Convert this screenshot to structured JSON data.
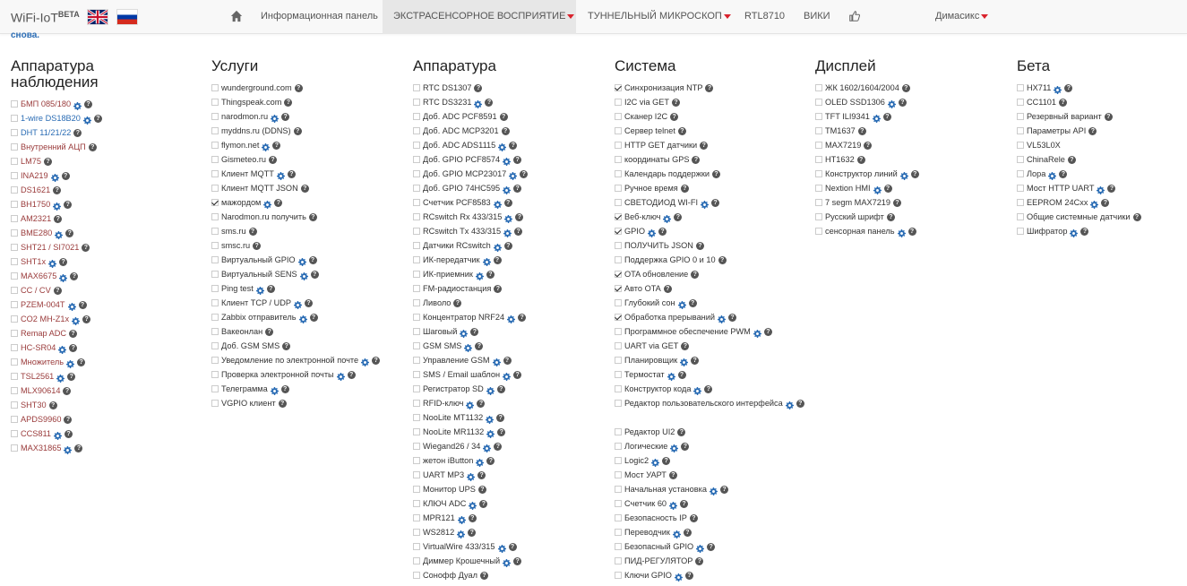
{
  "navbar": {
    "brand": "WiFi-IoT",
    "brand_sup": "BETA",
    "menu": [
      {
        "label": "Информационная панель",
        "dropdown": false
      },
      {
        "label": "ЭКСТРАСЕНСОРНОЕ ВОСПРИЯТИЕ",
        "dropdown": true,
        "active": true
      },
      {
        "label": "ТУННЕЛЬНЫЙ МИКРОСКОП",
        "dropdown": true
      },
      {
        "label": "RTL8710",
        "dropdown": false
      },
      {
        "label": "ВИКИ",
        "dropdown": false
      }
    ],
    "user": "Димасикс"
  },
  "cutoff_text": "снова.",
  "colors": {
    "link_blue": "#2a6cb4",
    "link_red": "#9a3b3b",
    "caret": "#d9232d"
  },
  "columns": [
    {
      "title": "Аппаратура наблюдения",
      "items": [
        {
          "label": "БМП 085/180",
          "color": "red",
          "gear": true,
          "help": true
        },
        {
          "label": "1-wire DS18B20",
          "color": "blue",
          "gear": true,
          "help": true
        },
        {
          "label": "DHT 11/21/22",
          "color": "blue",
          "help": true
        },
        {
          "label": "Внутренний АЦП",
          "color": "red",
          "help": true
        },
        {
          "label": "LM75",
          "color": "red",
          "help": true
        },
        {
          "label": "INA219",
          "color": "red",
          "gear": true,
          "help": true
        },
        {
          "label": "DS1621",
          "color": "red",
          "help": true
        },
        {
          "label": "BH1750",
          "color": "red",
          "gear": true,
          "help": true
        },
        {
          "label": "AM2321",
          "color": "red",
          "help": true
        },
        {
          "label": "BME280",
          "color": "red",
          "gear": true,
          "help": true
        },
        {
          "label": "SHT21 / SI7021",
          "color": "red",
          "help": true
        },
        {
          "label": "SHT1x",
          "color": "red",
          "gear": true,
          "help": true
        },
        {
          "label": "MAX6675",
          "color": "red",
          "gear": true,
          "help": true
        },
        {
          "label": "CC / CV",
          "color": "red",
          "help": true
        },
        {
          "label": "PZEM-004T",
          "color": "red",
          "gear": true,
          "help": true
        },
        {
          "label": "CO2 MH-Z1x",
          "color": "red",
          "gear": true,
          "help": true
        },
        {
          "label": "Remap ADC",
          "color": "red",
          "help": true
        },
        {
          "label": "HC-SR04",
          "color": "red",
          "gear": true,
          "help": true
        },
        {
          "label": "Множитель",
          "color": "red",
          "gear": true,
          "help": true
        },
        {
          "label": "TSL2561",
          "color": "red",
          "gear": true,
          "help": true
        },
        {
          "label": "MLX90614",
          "color": "red",
          "help": true
        },
        {
          "label": "SHT30",
          "color": "red",
          "help": true
        },
        {
          "label": "APDS9960",
          "color": "red",
          "help": true
        },
        {
          "label": "CCS811",
          "color": "red",
          "gear": true,
          "help": true
        },
        {
          "label": "MAX31865",
          "color": "red",
          "gear": true,
          "help": true
        }
      ]
    },
    {
      "title": "Услуги",
      "items": [
        {
          "label": "wunderground.com",
          "color": "plain",
          "help": true
        },
        {
          "label": "Thingspeak.com",
          "color": "plain",
          "help": true
        },
        {
          "label": "narodmon.ru",
          "color": "plain",
          "gear": true,
          "help": true
        },
        {
          "label": "myddns.ru (DDNS)",
          "color": "plain",
          "help": true
        },
        {
          "label": "flymon.net",
          "color": "plain",
          "gear": true,
          "help": true
        },
        {
          "label": "Gismeteo.ru",
          "color": "plain",
          "help": true
        },
        {
          "label": "Клиент MQTT",
          "color": "plain",
          "gear": true,
          "help": true
        },
        {
          "label": "Клиент MQTT JSON",
          "color": "plain",
          "help": true
        },
        {
          "label": "мажордом",
          "color": "plain",
          "checked": true,
          "gear": true,
          "help": true
        },
        {
          "label": "Narodmon.ru получить",
          "color": "plain",
          "help": true
        },
        {
          "label": "sms.ru",
          "color": "plain",
          "help": true
        },
        {
          "label": "smsc.ru",
          "color": "plain",
          "help": true
        },
        {
          "label": "Виртуальный GPIO",
          "color": "plain",
          "gear": true,
          "help": true
        },
        {
          "label": "Виртуальный SENS",
          "color": "plain",
          "gear": true,
          "help": true
        },
        {
          "label": "Ping test",
          "color": "plain",
          "gear": true,
          "help": true
        },
        {
          "label": "Клиент TCP / UDP",
          "color": "plain",
          "gear": true,
          "help": true
        },
        {
          "label": "Zabbix отправитель",
          "color": "plain",
          "gear": true,
          "help": true
        },
        {
          "label": "Вакеонлан",
          "color": "plain",
          "help": true
        },
        {
          "label": "Доб. GSM SMS",
          "color": "plain",
          "help": true
        },
        {
          "label": "Уведомление по электронной почте",
          "color": "plain",
          "gear": true,
          "help": true
        },
        {
          "label": "Проверка электронной почты",
          "color": "plain",
          "gear": true,
          "help": true
        },
        {
          "label": "Телеграмма",
          "color": "plain",
          "gear": true,
          "help": true
        },
        {
          "label": "VGPIO клиент",
          "color": "plain",
          "help": true
        }
      ]
    },
    {
      "title": "Аппаратура",
      "items": [
        {
          "label": "RTC DS1307",
          "color": "plain",
          "help": true
        },
        {
          "label": "RTC DS3231",
          "color": "plain",
          "gear": true,
          "help": true
        },
        {
          "label": "Доб. ADC PCF8591",
          "color": "plain",
          "help": true
        },
        {
          "label": "Доб. ADC MCP3201",
          "color": "plain",
          "help": true
        },
        {
          "label": "Доб. ADC ADS1115",
          "color": "plain",
          "gear": true,
          "help": true
        },
        {
          "label": "Доб. GPIO PCF8574",
          "color": "plain",
          "gear": true,
          "help": true
        },
        {
          "label": "Доб. GPIO MCP23017",
          "color": "plain",
          "gear": true,
          "help": true
        },
        {
          "label": "Доб. GPIO 74HC595",
          "color": "plain",
          "gear": true,
          "help": true
        },
        {
          "label": "Счетчик PCF8583",
          "color": "plain",
          "gear": true,
          "help": true
        },
        {
          "label": "RCswitch Rx 433/315",
          "color": "plain",
          "gear": true,
          "help": true
        },
        {
          "label": "RCswitch Tx 433/315",
          "color": "plain",
          "gear": true,
          "help": true
        },
        {
          "label": "Датчики RCswitch",
          "color": "plain",
          "gear": true,
          "help": true
        },
        {
          "label": "ИК-передатчик",
          "color": "plain",
          "gear": true,
          "help": true
        },
        {
          "label": "ИК-приемник",
          "color": "plain",
          "gear": true,
          "help": true
        },
        {
          "label": "FM-радиостанция",
          "color": "plain",
          "help": true
        },
        {
          "label": "Ливоло",
          "color": "plain",
          "help": true
        },
        {
          "label": "Концентратор NRF24",
          "color": "plain",
          "gear": true,
          "help": true
        },
        {
          "label": "Шаговый",
          "color": "plain",
          "gear": true,
          "help": true
        },
        {
          "label": "GSM SMS",
          "color": "plain",
          "gear": true,
          "help": true
        },
        {
          "label": "Управление GSM",
          "color": "plain",
          "gear": true,
          "help": true
        },
        {
          "label": "SMS / Email шаблон",
          "color": "plain",
          "gear": true,
          "help": true
        },
        {
          "label": "Регистратор SD",
          "color": "plain",
          "gear": true,
          "help": true
        },
        {
          "label": "RFID-ключ",
          "color": "plain",
          "gear": true,
          "help": true
        },
        {
          "label": "NooLite MT1132",
          "color": "plain",
          "gear": true,
          "help": true
        },
        {
          "label": "NooLite MR1132",
          "color": "plain",
          "gear": true,
          "help": true
        },
        {
          "label": "Wiegand26 / 34",
          "color": "plain",
          "gear": true,
          "help": true
        },
        {
          "label": "жетон iButton",
          "color": "plain",
          "gear": true,
          "help": true
        },
        {
          "label": "UART MP3",
          "color": "plain",
          "gear": true,
          "help": true
        },
        {
          "label": "Монитор UPS",
          "color": "plain",
          "help": true
        },
        {
          "label": "КЛЮЧ ADC",
          "color": "plain",
          "gear": true,
          "help": true
        },
        {
          "label": "MPR121",
          "color": "plain",
          "gear": true,
          "help": true
        },
        {
          "label": "WS2812",
          "color": "plain",
          "gear": true,
          "help": true
        },
        {
          "label": "VirtualWire 433/315",
          "color": "plain",
          "gear": true,
          "help": true
        },
        {
          "label": "Диммер Крошечный",
          "color": "plain",
          "gear": true,
          "help": true
        },
        {
          "label": "Сонофф Дуал",
          "color": "plain",
          "help": true
        }
      ]
    },
    {
      "title": "Система",
      "items": [
        {
          "label": "Синхронизация NTP",
          "color": "plain",
          "checked": true,
          "help": true
        },
        {
          "label": "I2C via GET",
          "color": "plain",
          "help": true
        },
        {
          "label": "Сканер I2C",
          "color": "plain",
          "help": true
        },
        {
          "label": "Сервер telnet",
          "color": "plain",
          "help": true
        },
        {
          "label": "HTTP GET датчики",
          "color": "plain",
          "help": true
        },
        {
          "label": "координаты GPS",
          "color": "plain",
          "help": true
        },
        {
          "label": "Календарь поддержки",
          "color": "plain",
          "help": true
        },
        {
          "label": "Ручное время",
          "color": "plain",
          "help": true
        },
        {
          "label": "СВЕТОДИОД WI-FI",
          "color": "plain",
          "gear": true,
          "help": true
        },
        {
          "label": "Веб-ключ",
          "color": "plain",
          "checked": true,
          "gear": true,
          "help": true
        },
        {
          "label": "GPIO",
          "color": "plain",
          "checked": true,
          "gear": true,
          "help": true
        },
        {
          "label": "ПОЛУЧИТЬ JSON",
          "color": "plain",
          "help": true
        },
        {
          "label": "Поддержка GPIO 0 и 10",
          "color": "plain",
          "help": true
        },
        {
          "label": "OTA обновление",
          "color": "plain",
          "checked": true,
          "help": true
        },
        {
          "label": "Авто OTA",
          "color": "plain",
          "checked": true,
          "help": true
        },
        {
          "label": "Глубокий сон",
          "color": "plain",
          "gear": true,
          "help": true
        },
        {
          "label": "Обработка прерываний",
          "color": "plain",
          "checked": true,
          "gear": true,
          "help": true
        },
        {
          "label": "Программное обеспечение PWM",
          "color": "plain",
          "gear": true,
          "help": true
        },
        {
          "label": "UART via GET",
          "color": "plain",
          "help": true
        },
        {
          "label": "Планировщик",
          "color": "plain",
          "gear": true,
          "help": true
        },
        {
          "label": "Термостат",
          "color": "plain",
          "gear": true,
          "help": true
        },
        {
          "label": "Конструктор кода",
          "color": "plain",
          "gear": true,
          "help": true
        },
        {
          "label": "Редактор пользовательского интерфейса",
          "color": "plain",
          "gear": true,
          "help": true,
          "wrap": true
        },
        {
          "label": "Редактор UI2",
          "color": "plain",
          "help": true
        },
        {
          "label": "Логические",
          "color": "plain",
          "gear": true,
          "help": true
        },
        {
          "label": "Logic2",
          "color": "plain",
          "gear": true,
          "help": true
        },
        {
          "label": "Мост УАРТ",
          "color": "plain",
          "help": true
        },
        {
          "label": "Начальная установка",
          "color": "plain",
          "gear": true,
          "help": true
        },
        {
          "label": "Счетчик 60",
          "color": "plain",
          "gear": true,
          "help": true
        },
        {
          "label": "Безопасность IP",
          "color": "plain",
          "help": true
        },
        {
          "label": "Переводчик",
          "color": "plain",
          "gear": true,
          "help": true
        },
        {
          "label": "Безопасный GPIO",
          "color": "plain",
          "gear": true,
          "help": true
        },
        {
          "label": "ПИД-РЕГУЛЯТОР",
          "color": "plain",
          "help": true
        },
        {
          "label": "Ключи GPIO",
          "color": "plain",
          "gear": true,
          "help": true
        }
      ]
    },
    {
      "title": "Дисплей",
      "items": [
        {
          "label": "ЖК 1602/1604/2004",
          "color": "plain",
          "help": true
        },
        {
          "label": "OLED SSD1306",
          "color": "plain",
          "gear": true,
          "help": true
        },
        {
          "label": "TFT ILI9341",
          "color": "plain",
          "gear": true,
          "help": true
        },
        {
          "label": "TM1637",
          "color": "plain",
          "help": true
        },
        {
          "label": "MAX7219",
          "color": "plain",
          "help": true
        },
        {
          "label": "HT1632",
          "color": "plain",
          "help": true
        },
        {
          "label": "Конструктор линий",
          "color": "plain",
          "gear": true,
          "help": true
        },
        {
          "label": "Nextion HMI",
          "color": "plain",
          "gear": true,
          "help": true
        },
        {
          "label": "7 segm MAX7219",
          "color": "plain",
          "help": true
        },
        {
          "label": "Русский шрифт",
          "color": "plain",
          "help": true
        },
        {
          "label": "сенсорная панель",
          "color": "plain",
          "gear": true,
          "help": true
        }
      ]
    },
    {
      "title": "Бета",
      "items": [
        {
          "label": "HX711",
          "color": "plain",
          "gear": true,
          "help": true
        },
        {
          "label": "CC1101",
          "color": "plain",
          "help": true
        },
        {
          "label": "Резервный вариант",
          "color": "plain",
          "help": true
        },
        {
          "label": "Параметры API",
          "color": "plain",
          "help": true
        },
        {
          "label": "VL53L0X",
          "color": "plain"
        },
        {
          "label": "ChinaRele",
          "color": "plain",
          "help": true
        },
        {
          "label": "Лора",
          "color": "plain",
          "gear": true,
          "help": true
        },
        {
          "label": "Мост HTTP UART",
          "color": "plain",
          "gear": true,
          "help": true
        },
        {
          "label": "EEPROM 24Cxx",
          "color": "plain",
          "gear": true,
          "help": true
        },
        {
          "label": "Общие системные датчики",
          "color": "plain",
          "help": true
        },
        {
          "label": "Шифратор",
          "color": "plain",
          "gear": true,
          "help": true
        }
      ]
    }
  ]
}
